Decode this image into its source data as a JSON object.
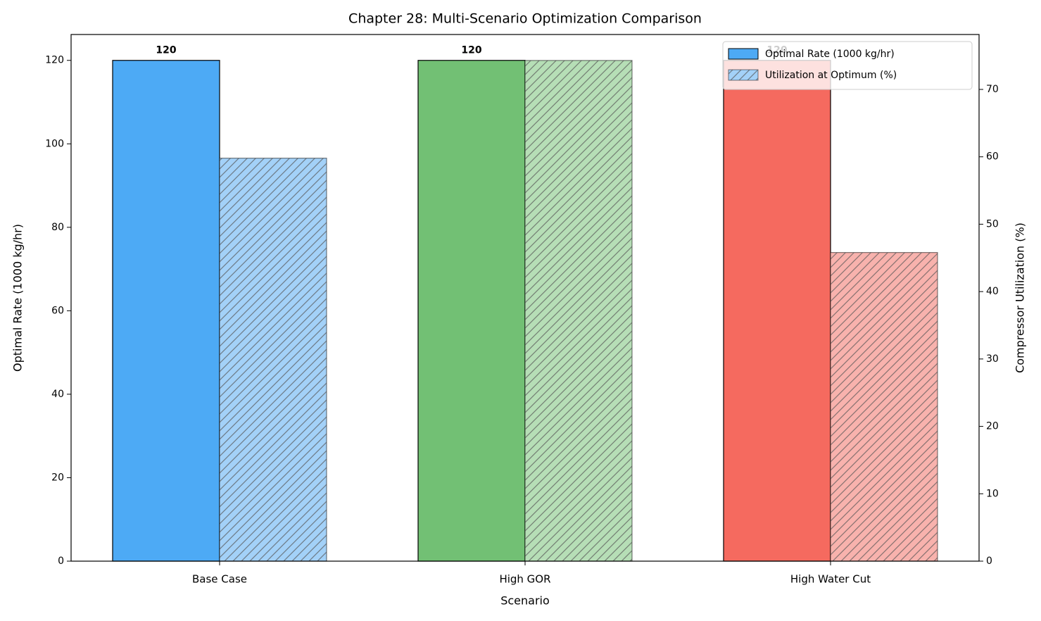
{
  "chart_data": {
    "type": "bar",
    "title": "Chapter 28: Multi-Scenario Optimization Comparison",
    "x_label": "Scenario",
    "y_label": "Optimal Rate (1000 kg/hr)",
    "y2_label": "Compressor Utilization (%)",
    "categories": [
      "Base Case",
      "High GOR",
      "High Water Cut"
    ],
    "series": [
      {
        "name": "Optimal Rate (1000 kg/hr)",
        "colors": [
          "#4daaf5",
          "#72c074",
          "#f56a5f"
        ],
        "values": [
          120,
          120,
          120
        ],
        "data_labels": true
      },
      {
        "name": "Utilization at Optimum (%)",
        "colors": [
          "#a3d1f8",
          "#b6deb6",
          "#f8b2ad"
        ],
        "values": [
          59.8,
          74.3,
          45.8
        ],
        "axis": "y2",
        "hatch": true
      }
    ],
    "ylim": [
      0,
      126.2
    ],
    "yticks": [
      0,
      20,
      40,
      60,
      80,
      100,
      120
    ],
    "y2lim": [
      0,
      78.15
    ],
    "y2ticks": [
      0,
      10,
      20,
      30,
      40,
      50,
      60,
      70
    ],
    "legend": "upper right"
  }
}
